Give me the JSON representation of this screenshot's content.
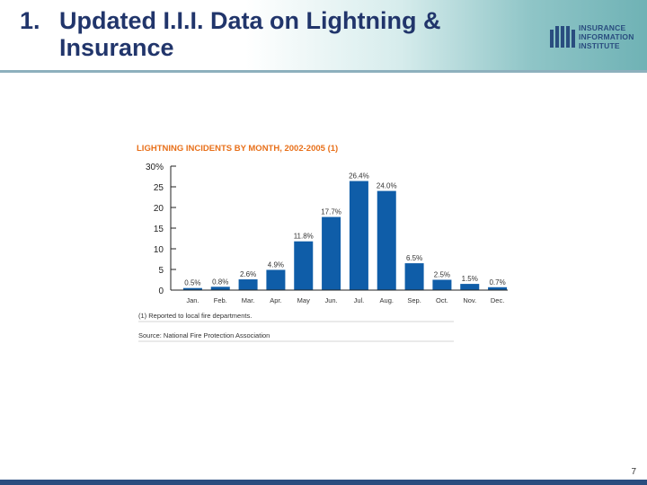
{
  "slide": {
    "number_prefix": "1.",
    "title_line1": "Updated I.I.I. Data on Lightning &",
    "title_line2": "Insurance",
    "page_number": "7"
  },
  "logo": {
    "text": "INSURANCE\nINFORMATION\nINSTITUTE"
  },
  "colors": {
    "title": "#21356b",
    "bar": "#0f5da8",
    "heading": "#e8701a",
    "footer": "#2a4d7f"
  },
  "chart_data": {
    "type": "bar",
    "title": "LIGHTNING INCIDENTS BY MONTH, 2002-2005 (1)",
    "categories": [
      "Jan.",
      "Feb.",
      "Mar.",
      "Apr.",
      "May",
      "Jun.",
      "Jul.",
      "Aug.",
      "Sep.",
      "Oct.",
      "Nov.",
      "Dec."
    ],
    "values": [
      0.5,
      0.8,
      2.6,
      4.9,
      11.8,
      17.7,
      26.4,
      24.0,
      6.5,
      2.5,
      1.5,
      0.7
    ],
    "value_labels": [
      "0.5%",
      "0.8%",
      "2.6%",
      "4.9%",
      "11.8%",
      "17.7%",
      "26.4%",
      "24.0%",
      "6.5%",
      "2.5%",
      "1.5%",
      "0.7%"
    ],
    "y_ticks": [
      0,
      5,
      10,
      15,
      20,
      25,
      30
    ],
    "y_tick_labels": [
      "0",
      "5",
      "10",
      "15",
      "20",
      "25",
      "30%"
    ],
    "ylim": [
      0,
      30
    ],
    "xlabel": "",
    "ylabel": "",
    "footnote": "(1) Reported to local fire departments.",
    "source": "Source: National Fire Protection Association"
  }
}
